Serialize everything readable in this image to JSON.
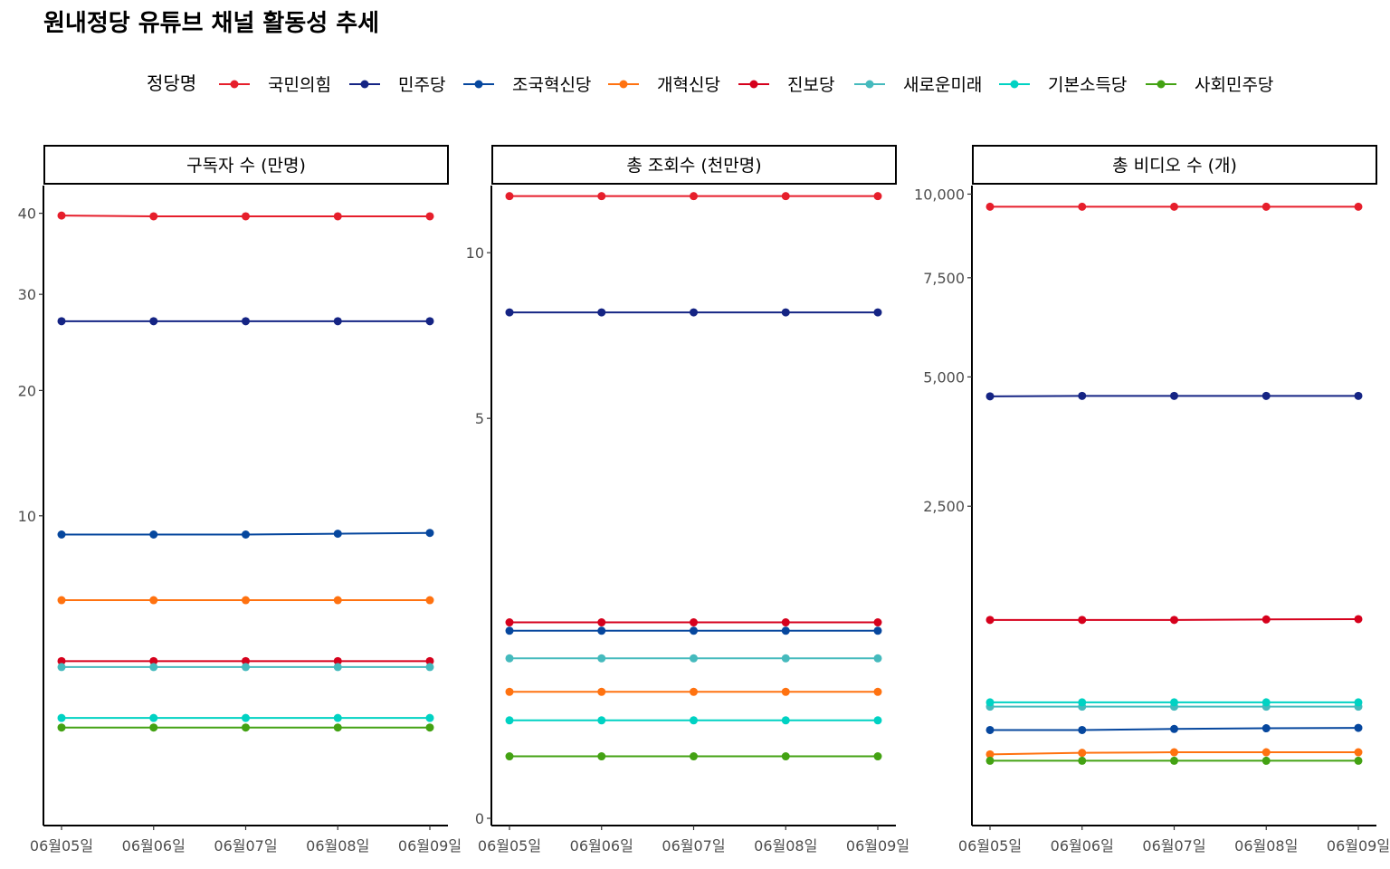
{
  "title": "원내정당 유튜브 채널 활동성 추세",
  "legend": {
    "title": "정당명",
    "items": [
      {
        "name": "국민의힘",
        "color": "#E61E2B"
      },
      {
        "name": "민주당",
        "color": "#152484"
      },
      {
        "name": "조국혁신당",
        "color": "#06479E"
      },
      {
        "name": "개혁신당",
        "color": "#FF7210"
      },
      {
        "name": "진보당",
        "color": "#D6001C"
      },
      {
        "name": "새로운미래",
        "color": "#45BABD"
      },
      {
        "name": "기본소득당",
        "color": "#00D2C3"
      },
      {
        "name": "사회민주당",
        "color": "#43A213"
      }
    ]
  },
  "chart_data": [
    {
      "type": "line",
      "title": "구독자 수 (만명)",
      "scale": "sqrt",
      "x": [
        "06월05일",
        "06월06일",
        "06월07일",
        "06월08일",
        "06월09일"
      ],
      "ylim": [
        0,
        43
      ],
      "yticks": [
        10,
        20,
        30,
        40
      ],
      "ytick_labels": [
        "10",
        "20",
        "30",
        "40"
      ],
      "series": [
        {
          "name": "국민의힘",
          "values": [
            39.7,
            39.6,
            39.6,
            39.6,
            39.6
          ]
        },
        {
          "name": "민주당",
          "values": [
            27.0,
            27.0,
            27.0,
            27.0,
            27.0
          ]
        },
        {
          "name": "조국혁신당",
          "values": [
            8.8,
            8.8,
            8.8,
            8.85,
            8.9
          ]
        },
        {
          "name": "개혁신당",
          "values": [
            5.2,
            5.2,
            5.2,
            5.2,
            5.2
          ]
        },
        {
          "name": "진보당",
          "values": [
            2.7,
            2.7,
            2.7,
            2.7,
            2.7
          ]
        },
        {
          "name": "새로운미래",
          "values": [
            2.5,
            2.5,
            2.5,
            2.5,
            2.5
          ]
        },
        {
          "name": "기본소득당",
          "values": [
            1.1,
            1.1,
            1.1,
            1.1,
            1.1
          ]
        },
        {
          "name": "사회민주당",
          "values": [
            0.9,
            0.9,
            0.9,
            0.9,
            0.9
          ]
        }
      ]
    },
    {
      "type": "line",
      "title": "총 조회수 (천만명)",
      "scale": "sqrt",
      "x": [
        "06월05일",
        "06월06일",
        "06월07일",
        "06월08일",
        "06월09일"
      ],
      "ylim": [
        0,
        12.3
      ],
      "yticks": [
        0,
        5,
        10
      ],
      "ytick_labels": [
        "0",
        "5",
        "10"
      ],
      "series": [
        {
          "name": "국민의힘",
          "values": [
            12.1,
            12.1,
            12.1,
            12.1,
            12.1
          ]
        },
        {
          "name": "민주당",
          "values": [
            8.0,
            8.0,
            8.0,
            8.0,
            8.0
          ]
        },
        {
          "name": "조국혁신당",
          "values": [
            1.1,
            1.1,
            1.1,
            1.1,
            1.1
          ]
        },
        {
          "name": "개혁신당",
          "values": [
            0.5,
            0.5,
            0.5,
            0.5,
            0.5
          ]
        },
        {
          "name": "진보당",
          "values": [
            1.2,
            1.2,
            1.2,
            1.2,
            1.2
          ]
        },
        {
          "name": "새로운미래",
          "values": [
            0.8,
            0.8,
            0.8,
            0.8,
            0.8
          ]
        },
        {
          "name": "기본소득당",
          "values": [
            0.3,
            0.3,
            0.3,
            0.3,
            0.3
          ]
        },
        {
          "name": "사회민주당",
          "values": [
            0.12,
            0.12,
            0.12,
            0.12,
            0.12
          ]
        }
      ]
    },
    {
      "type": "line",
      "title": "총 비디오 수 (개)",
      "scale": "sqrt",
      "x": [
        "06월05일",
        "06월06일",
        "06월07일",
        "06월08일",
        "06월09일"
      ],
      "ylim": [
        0,
        10100
      ],
      "yticks": [
        2500,
        5000,
        7500,
        10000
      ],
      "ytick_labels": [
        "2,500",
        "5,000",
        "7,500",
        "10,000"
      ],
      "series": [
        {
          "name": "국민의힘",
          "values": [
            9600,
            9600,
            9600,
            9600,
            9600
          ]
        },
        {
          "name": "민주당",
          "values": [
            4570,
            4580,
            4580,
            4580,
            4580
          ]
        },
        {
          "name": "조국혁신당",
          "values": [
            200,
            200,
            205,
            208,
            210
          ]
        },
        {
          "name": "개혁신당",
          "values": [
            105,
            110,
            112,
            112,
            112
          ]
        },
        {
          "name": "진보당",
          "values": [
            1010,
            1010,
            1010,
            1015,
            1018
          ]
        },
        {
          "name": "새로운미래",
          "values": [
            320,
            320,
            320,
            320,
            320
          ]
        },
        {
          "name": "기본소득당",
          "values": [
            345,
            345,
            345,
            345,
            345
          ]
        },
        {
          "name": "사회민주당",
          "values": [
            85,
            85,
            85,
            85,
            85
          ]
        }
      ]
    }
  ]
}
